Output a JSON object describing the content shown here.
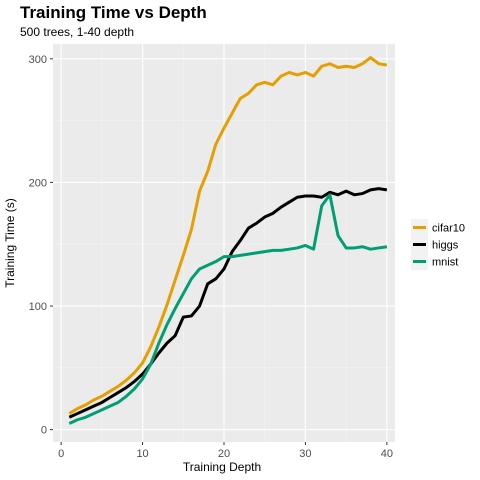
{
  "chart_data": {
    "type": "line",
    "title": "Training Time vs Depth",
    "subtitle": "500 trees, 1-40 depth",
    "xlabel": "Training Depth",
    "ylabel": "Training Time (s)",
    "xlim": [
      -1,
      41
    ],
    "ylim": [
      -10,
      312
    ],
    "xticks": [
      0,
      10,
      20,
      30,
      40
    ],
    "yticks": [
      0,
      100,
      200,
      300
    ],
    "grid": true,
    "legend_position": "right",
    "x": [
      1,
      2,
      3,
      4,
      5,
      6,
      7,
      8,
      9,
      10,
      11,
      12,
      13,
      14,
      15,
      16,
      17,
      18,
      19,
      20,
      21,
      22,
      23,
      24,
      25,
      26,
      27,
      28,
      29,
      30,
      31,
      32,
      33,
      34,
      35,
      36,
      37,
      38,
      39,
      40
    ],
    "series": [
      {
        "name": "cifar10",
        "color": "#E69F00",
        "values": [
          13,
          17,
          20,
          24,
          27,
          31,
          35,
          40,
          46,
          54,
          67,
          83,
          101,
          121,
          141,
          162,
          193,
          209,
          231,
          244,
          256,
          268,
          272,
          279,
          281,
          279,
          286,
          289,
          287,
          289,
          286,
          294,
          296,
          293,
          294,
          293,
          296,
          301,
          296,
          295
        ]
      },
      {
        "name": "higgs",
        "color": "#000000",
        "values": [
          10,
          13,
          16,
          19,
          22,
          26,
          30,
          34,
          39,
          45,
          53,
          62,
          70,
          76,
          91,
          92,
          100,
          118,
          122,
          130,
          144,
          153,
          163,
          167,
          172,
          175,
          180,
          184,
          188,
          189,
          189,
          188,
          192,
          190,
          193,
          190,
          191,
          194,
          195,
          194
        ]
      },
      {
        "name": "mnist",
        "color": "#009E73",
        "values": [
          5,
          8,
          10,
          13,
          16,
          19,
          22,
          27,
          33,
          41,
          53,
          70,
          85,
          98,
          110,
          122,
          130,
          133,
          136,
          140,
          140,
          141,
          142,
          143,
          144,
          145,
          145,
          146,
          147,
          149,
          146,
          181,
          190,
          157,
          147,
          147,
          148,
          146,
          147,
          148
        ]
      }
    ]
  }
}
